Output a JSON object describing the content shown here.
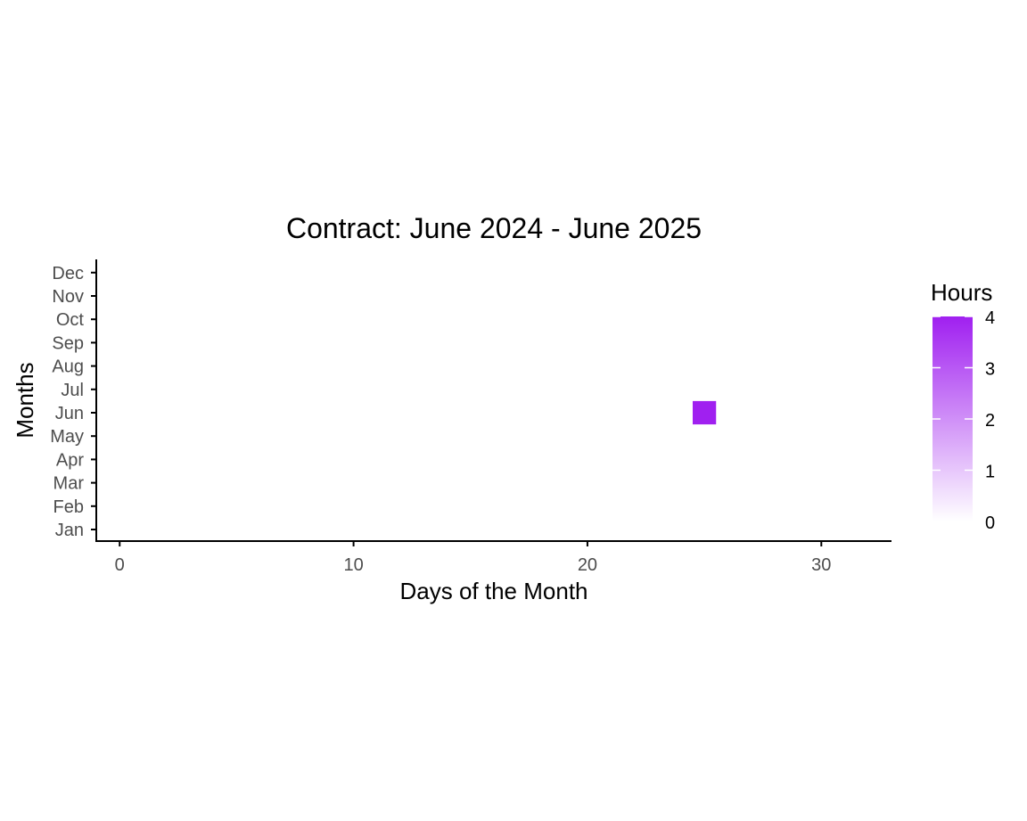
{
  "chart_data": {
    "type": "heatmap",
    "title": "Contract: June 2024 - June 2025",
    "xlabel": "Days of the Month",
    "ylabel": "Months",
    "x_ticks": [
      0,
      10,
      20,
      30
    ],
    "xlim": [
      -1,
      33
    ],
    "y_categories": [
      "Jan",
      "Feb",
      "Mar",
      "Apr",
      "May",
      "Jun",
      "Jul",
      "Aug",
      "Sep",
      "Oct",
      "Nov",
      "Dec"
    ],
    "cells": [
      {
        "day": 25,
        "month": "Jun",
        "hours": 4
      }
    ],
    "legend": {
      "title": "Hours",
      "ticks": [
        0,
        1,
        2,
        3,
        4
      ],
      "range": [
        0,
        4
      ],
      "low_color": "#ffffff",
      "high_color": "#a020f0",
      "placement": "right"
    },
    "grid": false
  }
}
